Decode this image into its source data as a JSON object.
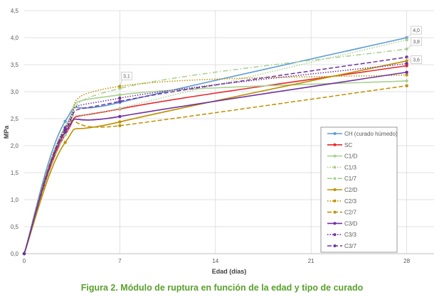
{
  "chart_data": {
    "type": "line",
    "title": "Figura 2. Módulo de ruptura en función de la edad y tipo de curado",
    "xlabel": "Edad (días)",
    "ylabel": "MPa",
    "xlim": [
      0,
      30
    ],
    "ylim": [
      0,
      4.5
    ],
    "xticks": [
      "0",
      "7",
      "14",
      "21",
      "28"
    ],
    "xtick_values": [
      0,
      7,
      14,
      21,
      28
    ],
    "yticks": [
      "0,0",
      "0,5",
      "1,0",
      "1,5",
      "2,0",
      "2,5",
      "3,0",
      "3,5",
      "4,0",
      "4,5"
    ],
    "ytick_values": [
      0,
      0.5,
      1,
      1.5,
      2,
      2.5,
      3,
      3.5,
      4,
      4.5
    ],
    "grid": true,
    "legend_position": "right",
    "x": [
      0,
      3,
      7,
      28
    ],
    "series": [
      {
        "name": "CH (curado húmedo)",
        "color": "#5b9bd5",
        "style": "solid",
        "values": [
          0,
          2.45,
          2.8,
          4.0
        ]
      },
      {
        "name": "SC",
        "color": "#e8262a",
        "style": "solid",
        "values": [
          0,
          2.2,
          2.68,
          3.48
        ]
      },
      {
        "name": "C1/D",
        "color": "#a9d18e",
        "style": "solid",
        "values": [
          0,
          2.35,
          2.94,
          3.2
        ]
      },
      {
        "name": "C1/3",
        "color": "#a9d18e",
        "style": "dot",
        "values": [
          0,
          2.3,
          2.69,
          3.96
        ]
      },
      {
        "name": "C1/7",
        "color": "#a9d18e",
        "style": "dashdot",
        "values": [
          0,
          2.2,
          3.06,
          3.79
        ]
      },
      {
        "name": "C2/D",
        "color": "#bf9000",
        "style": "solid",
        "values": [
          0,
          2.06,
          2.44,
          3.57
        ]
      },
      {
        "name": "C2/3",
        "color": "#bf9000",
        "style": "dot",
        "values": [
          0,
          2.28,
          3.1,
          3.31
        ]
      },
      {
        "name": "C2/7",
        "color": "#bf9000",
        "style": "dash",
        "values": [
          0,
          2.3,
          2.37,
          3.11
        ]
      },
      {
        "name": "C3/D",
        "color": "#7030a0",
        "style": "solid",
        "values": [
          0,
          2.25,
          2.54,
          3.36
        ]
      },
      {
        "name": "C3/3",
        "color": "#7030a0",
        "style": "dot",
        "values": [
          0,
          2.33,
          2.88,
          3.52
        ]
      },
      {
        "name": "C3/7",
        "color": "#7030a0",
        "style": "dash",
        "values": [
          0,
          2.29,
          2.82,
          3.64
        ]
      }
    ],
    "data_labels": [
      {
        "series": "C2/3",
        "x": 7,
        "y": 3.1,
        "text": "3,1"
      },
      {
        "series": "CH (curado húmedo)",
        "x": 28,
        "y": 4.0,
        "text": "4,0"
      },
      {
        "series": "C1/7",
        "x": 28,
        "y": 3.79,
        "text": "3,8"
      },
      {
        "series": "C3/7",
        "x": 28,
        "y": 3.64,
        "text": "3,6"
      }
    ]
  }
}
